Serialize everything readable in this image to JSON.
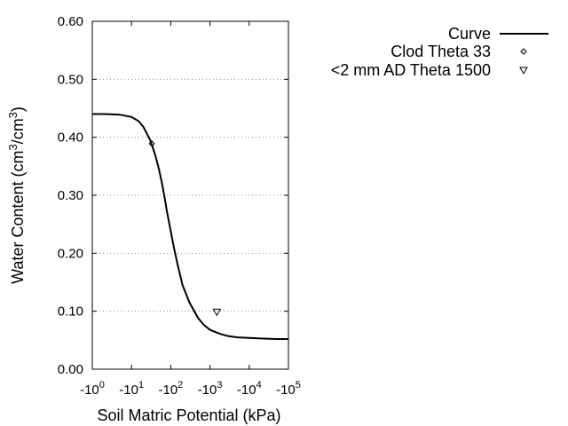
{
  "chart_data": {
    "type": "line",
    "xlabel": "Soil Matric Potential (kPa)",
    "ylabel": "Water Content (cm³/cm³)",
    "ylabel_parts": {
      "main": "Water Content (cm",
      "sup1": "3",
      "mid": "/cm",
      "sup2": "3",
      "end": ")"
    },
    "x_scale": "log",
    "xlim": [
      1,
      100000
    ],
    "ylim": [
      0.0,
      0.6
    ],
    "y_ticks": [
      {
        "value": 0.0,
        "label": "0.00"
      },
      {
        "value": 0.1,
        "label": "0.10"
      },
      {
        "value": 0.2,
        "label": "0.20"
      },
      {
        "value": 0.3,
        "label": "0.30"
      },
      {
        "value": 0.4,
        "label": "0.40"
      },
      {
        "value": 0.5,
        "label": "0.50"
      },
      {
        "value": 0.6,
        "label": "0.60"
      }
    ],
    "x_ticks": [
      {
        "value": 1,
        "base": "-10",
        "exp": "0"
      },
      {
        "value": 10,
        "base": "-10",
        "exp": "1"
      },
      {
        "value": 100,
        "base": "-10",
        "exp": "2"
      },
      {
        "value": 1000,
        "base": "-10",
        "exp": "3"
      },
      {
        "value": 10000,
        "base": "-10",
        "exp": "4"
      },
      {
        "value": 100000,
        "base": "-10",
        "exp": "5"
      }
    ],
    "grid": "horizontal dotted",
    "legend_position": "top-right",
    "series": [
      {
        "name": "Curve",
        "kind": "line",
        "x": [
          1,
          2,
          5,
          10,
          15,
          20,
          30,
          40,
          50,
          60,
          70,
          80,
          100,
          120,
          150,
          200,
          300,
          500,
          700,
          1000,
          1500,
          2000,
          3000,
          5000,
          10000,
          20000,
          50000,
          100000
        ],
        "y": [
          0.44,
          0.44,
          0.439,
          0.435,
          0.428,
          0.418,
          0.395,
          0.37,
          0.345,
          0.32,
          0.295,
          0.272,
          0.238,
          0.21,
          0.18,
          0.145,
          0.115,
          0.088,
          0.076,
          0.068,
          0.063,
          0.06,
          0.057,
          0.055,
          0.054,
          0.053,
          0.052,
          0.052
        ]
      },
      {
        "name": "Clod Theta 33",
        "kind": "points",
        "marker": "diamond",
        "x": [
          33
        ],
        "y": [
          0.389
        ]
      },
      {
        "name": "<2 mm AD Theta 1500",
        "kind": "points",
        "marker": "triangle-down",
        "x": [
          1500
        ],
        "y": [
          0.099
        ]
      }
    ]
  }
}
